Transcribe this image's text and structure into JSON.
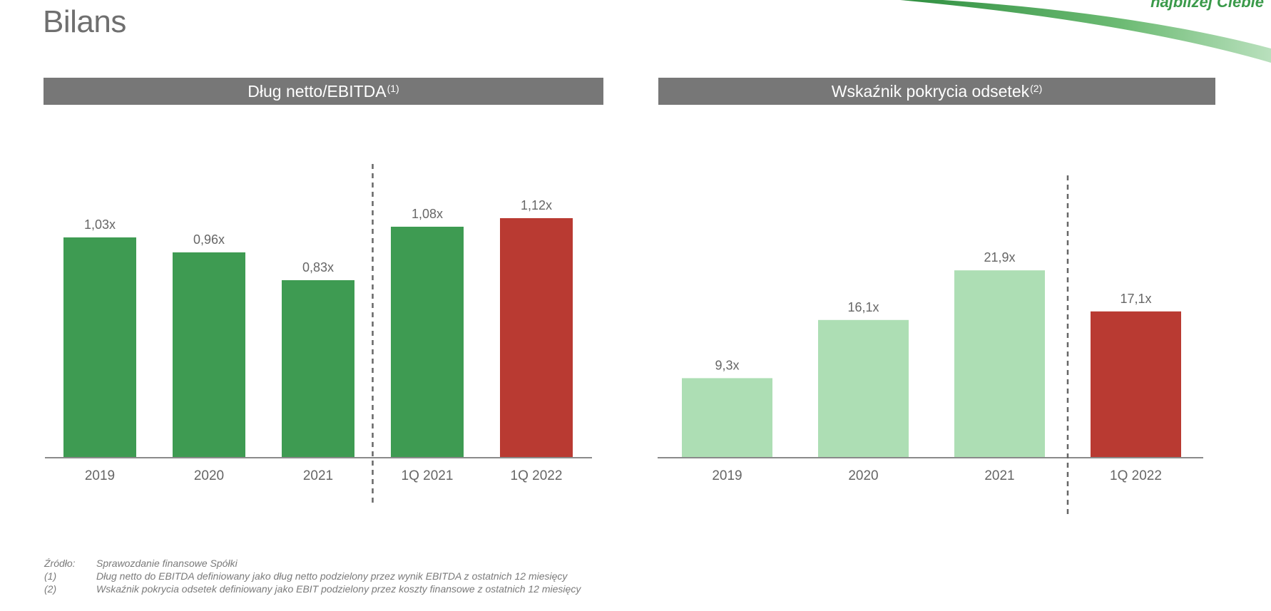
{
  "page": {
    "title": "Bilans",
    "brand_tagline": "najbliżej Ciebie"
  },
  "colors": {
    "header_bg": "#777777",
    "dark_green": "#3e9b52",
    "light_green": "#addeb4",
    "red": "#b93a32",
    "swoosh_green": "#3c9a4b"
  },
  "panels": [
    {
      "title": "Dług netto/EBITDA",
      "title_note": "(1)"
    },
    {
      "title": "Wskaźnik pokrycia odsetek",
      "title_note": "(2)"
    }
  ],
  "chart_data": [
    {
      "type": "bar",
      "title": "Dług netto/EBITDA(1)",
      "categories": [
        "2019",
        "2020",
        "2021",
        "1Q 2021",
        "1Q 2022"
      ],
      "values": [
        1.03,
        0.96,
        0.83,
        1.08,
        1.12
      ],
      "labels": [
        "1,03x",
        "0,96x",
        "0,83x",
        "1,08x",
        "1,12x"
      ],
      "bar_colors": [
        "#3e9b52",
        "#3e9b52",
        "#3e9b52",
        "#3e9b52",
        "#b93a32"
      ],
      "separator_after_index": 2,
      "ylim": [
        0,
        1.4
      ],
      "xlabel": "",
      "ylabel": "",
      "grid": false
    },
    {
      "type": "bar",
      "title": "Wskaźnik pokrycia odsetek(2)",
      "categories": [
        "2019",
        "2020",
        "2021",
        "1Q 2022"
      ],
      "values": [
        9.3,
        16.1,
        21.9,
        17.1
      ],
      "labels": [
        "9,3x",
        "16,1x",
        "21,9x",
        "17,1x"
      ],
      "bar_colors": [
        "#addeb4",
        "#addeb4",
        "#addeb4",
        "#b93a32"
      ],
      "separator_after_index": 2,
      "ylim": [
        0,
        35
      ],
      "xlabel": "",
      "ylabel": "",
      "grid": false
    }
  ],
  "footnotes": [
    {
      "key": "Źródło:",
      "text": "Sprawozdanie finansowe Spółki"
    },
    {
      "key": "(1)",
      "text": "Dług netto do EBITDA definiowany jako dług netto podzielony przez wynik EBITDA z ostatnich 12 miesięcy"
    },
    {
      "key": "(2)",
      "text": "Wskaźnik pokrycia odsetek definiowany jako EBIT podzielony przez koszty finansowe z ostatnich 12 miesięcy"
    }
  ]
}
